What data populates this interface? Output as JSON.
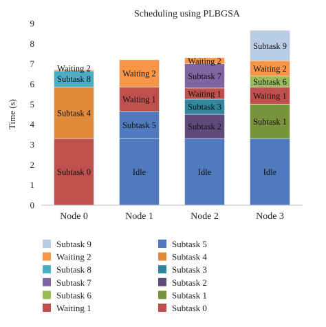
{
  "chart_data": {
    "type": "bar",
    "stacked": true,
    "title": "Scheduling using PLBGSA",
    "ylabel": "Time (s)",
    "xlabel": "",
    "ylim": [
      0,
      9
    ],
    "yticks": [
      0,
      1,
      2,
      3,
      4,
      5,
      6,
      7,
      8,
      9
    ],
    "categories": [
      "Node 0",
      "Node 1",
      "Node 2",
      "Node 3"
    ],
    "series": [
      {
        "name": "Idle",
        "color": "#4F7BBE",
        "values": [
          0,
          3.3,
          3.3,
          3.3
        ]
      },
      {
        "name": "Subtask 0",
        "color": "#C0504D",
        "values": [
          3.3,
          0,
          0,
          0
        ]
      },
      {
        "name": "Subtask 4",
        "color": "#E08A3C",
        "values": [
          2.55,
          0,
          0,
          0
        ]
      },
      {
        "name": "Subtask 8",
        "color": "#4BACC6",
        "values": [
          0.8,
          0,
          0,
          0
        ]
      },
      {
        "name": "Subtask 5",
        "color": "#4F7BBE",
        "values": [
          0,
          1.35,
          0,
          0
        ]
      },
      {
        "name": "Subtask 2",
        "color": "#604A7B",
        "values": [
          0,
          0,
          1.2,
          0
        ]
      },
      {
        "name": "Subtask 3",
        "color": "#31859C",
        "values": [
          0,
          0,
          0.75,
          0
        ]
      },
      {
        "name": "Subtask 1",
        "color": "#77933C",
        "values": [
          0,
          0,
          0,
          1.7
        ]
      },
      {
        "name": "Waiting 1",
        "color": "#C0504D",
        "values": [
          0,
          1.2,
          0.55,
          0.85
        ]
      },
      {
        "name": "Subtask 7",
        "color": "#8064A2",
        "values": [
          0,
          0,
          1.2,
          0
        ]
      },
      {
        "name": "Subtask 6",
        "color": "#9BBB59",
        "values": [
          0,
          0,
          0,
          0.55
        ]
      },
      {
        "name": "Waiting 2",
        "color": "#F79646",
        "values": [
          0.05,
          1.35,
          0.3,
          0.75
        ]
      },
      {
        "name": "Subtask 9",
        "color": "#B9CDE5",
        "values": [
          0,
          0,
          0,
          1.5
        ]
      }
    ],
    "segment_labels": [
      [
        "Subtask 0",
        "Subtask 4",
        "Subtask 8",
        "Waiting 2"
      ],
      [
        "Idle",
        "Subtask 5",
        "Waiting 1",
        "Waiting 2"
      ],
      [
        "Idle",
        "Subtask 2",
        "Subtask 3",
        "Waiting 1",
        "Subtask 7",
        "Waiting 2"
      ],
      [
        "Idle",
        "Subtask 1",
        "Waiting 1",
        "Subtask 6",
        "Waiting 2",
        "Subtask 9"
      ]
    ],
    "legend": {
      "placement": "bottom",
      "columns": [
        [
          "Subtask 9",
          "Waiting 2",
          "Subtask 8",
          "Subtask 7",
          "Subtask 6",
          "Waiting 1"
        ],
        [
          "Subtask 5",
          "Subtask 4",
          "Subtask 3",
          "Subtask 2",
          "Subtask 1",
          "Subtask 0"
        ]
      ]
    },
    "grid": false
  }
}
